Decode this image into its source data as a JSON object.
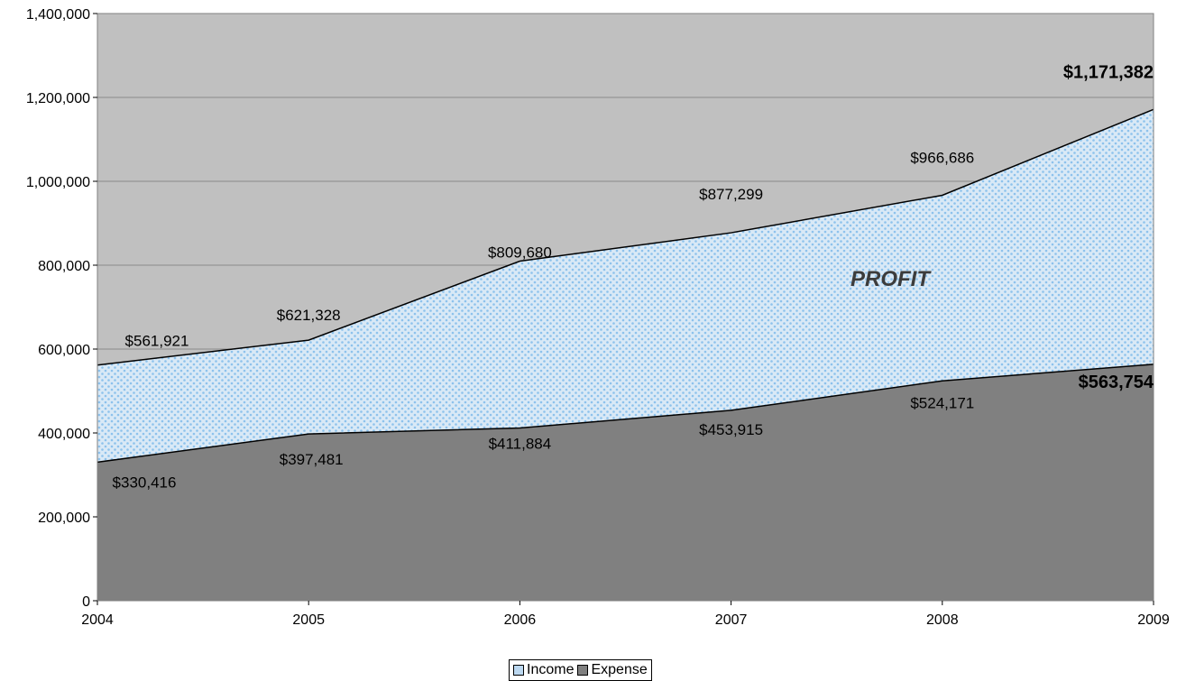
{
  "chart_data": {
    "type": "area",
    "x": [
      "2004",
      "2005",
      "2006",
      "2007",
      "2008",
      "2009"
    ],
    "series": [
      {
        "name": "Income",
        "values": [
          561921,
          621328,
          809680,
          877299,
          966686,
          1171382
        ],
        "color": "#bcd8f0",
        "dot_color": "#8dc2ec"
      },
      {
        "name": "Expense",
        "values": [
          330416,
          397481,
          411884,
          453915,
          524171,
          563754
        ],
        "color": "#808080"
      }
    ],
    "data_labels": {
      "Income": [
        "$561,921",
        "$621,328",
        "$809,680",
        "$877,299",
        "$966,686",
        "$1,171,382"
      ],
      "Expense": [
        "$330,416",
        "$397,481",
        "$411,884",
        "$453,915",
        "$524,171",
        "$563,754"
      ]
    },
    "ylim": [
      0,
      1400000
    ],
    "yticks": [
      0,
      200000,
      400000,
      600000,
      800000,
      1000000,
      1200000,
      1400000
    ],
    "ytick_labels": [
      "0",
      "200,000",
      "400,000",
      "600,000",
      "800,000",
      "1,000,000",
      "1,200,000",
      "1,400,000"
    ],
    "annotation": "PROFIT",
    "grid": true,
    "plot_background": "#c0c0c0",
    "legend_position": "bottom",
    "title": "",
    "xlabel": "",
    "ylabel": ""
  }
}
